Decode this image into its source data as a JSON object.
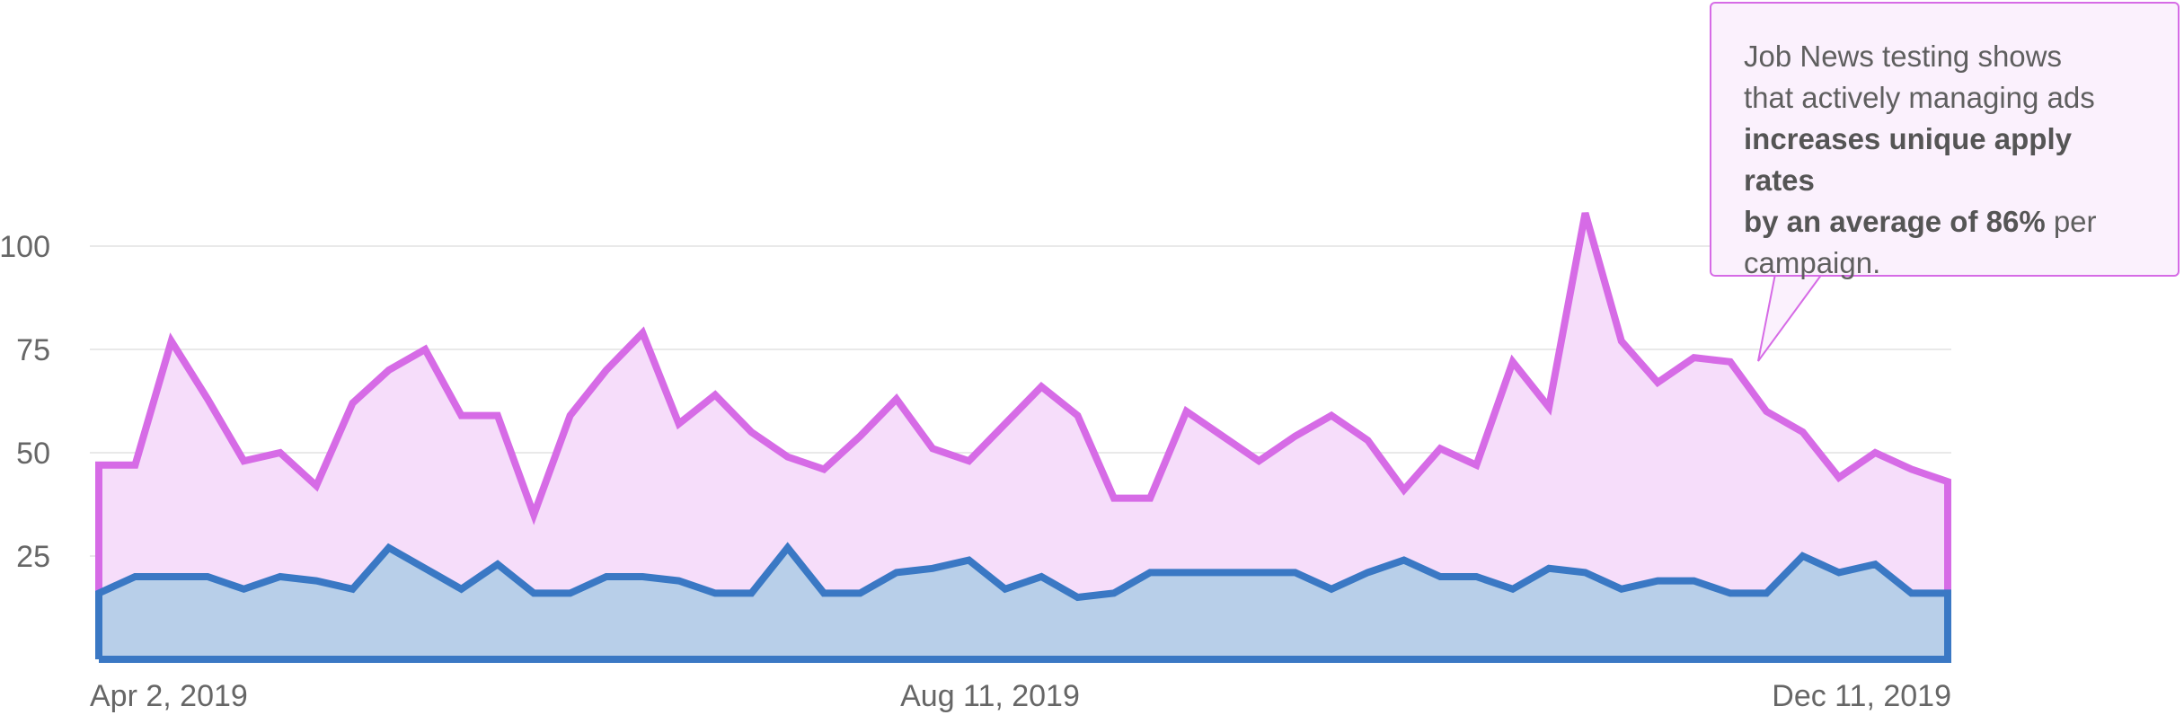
{
  "chart_data": {
    "type": "area",
    "x_ticks": [
      "Apr 2, 2019",
      "Aug 11, 2019",
      "Dec 11, 2019"
    ],
    "y_ticks": [
      25,
      50,
      75,
      100
    ],
    "ylim": [
      0,
      110
    ],
    "grid": true,
    "colors": {
      "top": "#d66be6",
      "top_fill": "#f6ddfa",
      "bottom": "#3a78c4",
      "bottom_fill": "#b8cfe9",
      "grid": "#e2e2e2"
    },
    "series": [
      {
        "values": [
          47,
          47,
          77,
          63,
          48,
          50,
          42,
          62,
          70,
          75,
          59,
          59,
          35,
          59,
          70,
          79,
          57,
          64,
          55,
          49,
          46,
          54,
          63,
          51,
          48,
          57,
          66,
          59,
          39,
          39,
          60,
          54,
          48,
          54,
          59,
          53,
          41,
          51,
          47,
          72,
          61,
          108,
          77,
          67,
          73,
          72,
          60,
          55,
          44,
          50,
          46,
          43
        ]
      },
      {
        "values": [
          16,
          20,
          20,
          20,
          17,
          20,
          19,
          17,
          27,
          22,
          17,
          23,
          16,
          16,
          20,
          20,
          19,
          16,
          16,
          27,
          16,
          16,
          21,
          22,
          24,
          17,
          20,
          15,
          16,
          21,
          21,
          21,
          21,
          21,
          17,
          21,
          24,
          20,
          20,
          17,
          22,
          21,
          17,
          19,
          19,
          16,
          16,
          25,
          21,
          23,
          16,
          16
        ]
      }
    ]
  },
  "callout": {
    "line1": "Job News testing shows",
    "line2": "that actively managing ads",
    "bold1": "increases unique apply rates",
    "bold2": "by an average of 86%",
    "tail": " per",
    "line5": "campaign."
  }
}
